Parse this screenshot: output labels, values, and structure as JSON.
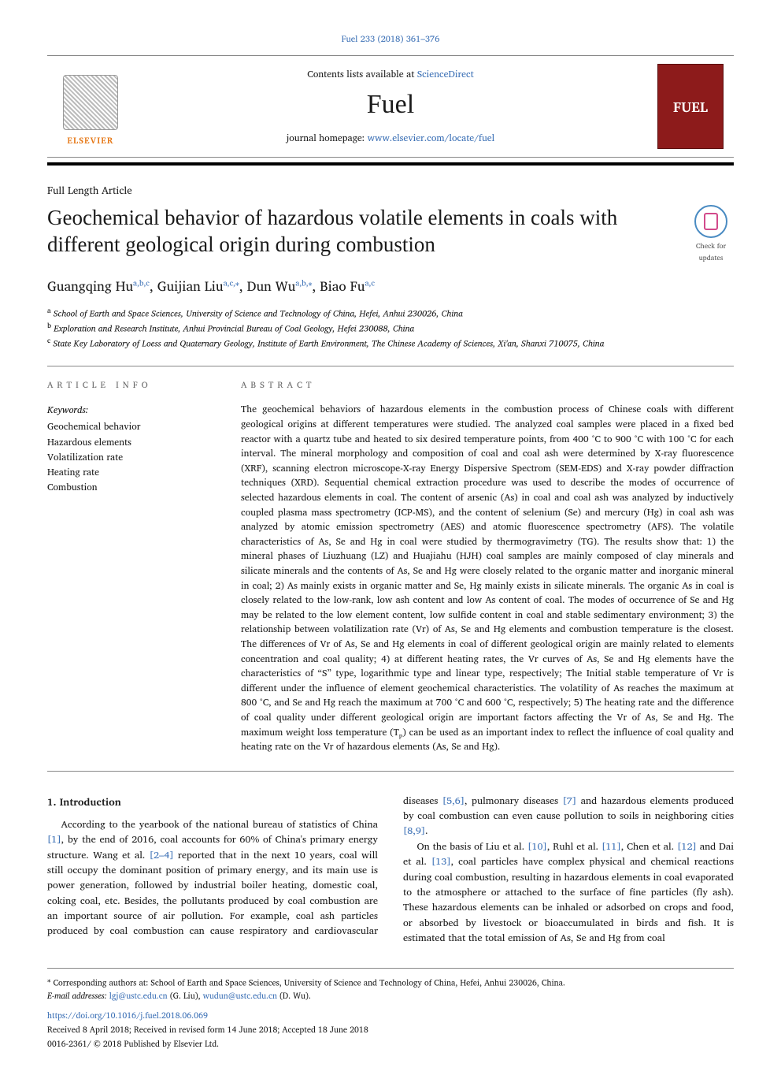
{
  "header": {
    "citation": "Fuel 233 (2018) 361–376",
    "contents_line_prefix": "Contents lists available at ",
    "contents_link": "ScienceDirect",
    "journal_name": "Fuel",
    "homepage_prefix": "journal homepage: ",
    "homepage_link": "www.elsevier.com/locate/fuel",
    "elsevier_label": "ELSEVIER",
    "cover_label": "FUEL"
  },
  "article": {
    "type": "Full Length Article",
    "title": "Geochemical behavior of hazardous volatile elements in coals with different geological origin during combustion",
    "updates_label": "Check for updates"
  },
  "authors": {
    "list_html": "Guangqing Hu<sup>a,b,c</sup>, Guijian Liu<sup>a,c,</sup><sup>⁎</sup>, Dun Wu<sup>a,b,</sup><sup>⁎</sup>, Biao Fu<sup>a,c</sup>",
    "a1_text": "Guangqing Hu",
    "a1_sup": "a,b,c",
    "a2_text": "Guijian Liu",
    "a2_sup": "a,c,⁎",
    "a3_text": "Dun Wu",
    "a3_sup": "a,b,⁎",
    "a4_text": "Biao Fu",
    "a4_sup": "a,c"
  },
  "affiliations": {
    "a": "School of Earth and Space Sciences, University of Science and Technology of China, Hefei, Anhui 230026, China",
    "b": "Exploration and Research Institute, Anhui Provincial Bureau of Coal Geology, Hefei 230088, China",
    "c": "State Key Laboratory of Loess and Quaternary Geology, Institute of Earth Environment, The Chinese Academy of Sciences, Xi'an, Shanxi 710075, China"
  },
  "info": {
    "label": "ARTICLE INFO",
    "keywords_head": "Keywords:",
    "keywords": [
      "Geochemical behavior",
      "Hazardous elements",
      "Volatilization rate",
      "Heating rate",
      "Combustion"
    ]
  },
  "abstract": {
    "label": "ABSTRACT",
    "text": "The geochemical behaviors of hazardous elements in the combustion process of Chinese coals with different geological origins at different temperatures were studied. The analyzed coal samples were placed in a fixed bed reactor with a quartz tube and heated to six desired temperature points, from 400 °C to 900 °C with 100 °C for each interval. The mineral morphology and composition of coal and coal ash were determined by X-ray fluorescence (XRF), scanning electron microscope-X-ray Energy Dispersive Spectrom (SEM-EDS) and X-ray powder diffraction techniques (XRD). Sequential chemical extraction procedure was used to describe the modes of occurrence of selected hazardous elements in coal. The content of arsenic (As) in coal and coal ash was analyzed by inductively coupled plasma mass spectrometry (ICP-MS), and the content of selenium (Se) and mercury (Hg) in coal ash was analyzed by atomic emission spectrometry (AES) and atomic fluorescence spectrometry (AFS). The volatile characteristics of As, Se and Hg in coal were studied by thermogravimetry (TG). The results show that: 1) the mineral phases of Liuzhuang (LZ) and Huajiahu (HJH) coal samples are mainly composed of clay minerals and silicate minerals and the contents of As, Se and Hg were closely related to the organic matter and inorganic mineral in coal; 2) As mainly exists in organic matter and Se, Hg mainly exists in silicate minerals. The organic As in coal is closely related to the low-rank, low ash content and low As content of coal. The modes of occurrence of Se and Hg may be related to the low element content, low sulfide content in coal and stable sedimentary environment; 3) the relationship between volatilization rate (Vr) of As, Se and Hg elements and combustion temperature is the closest. The differences of Vr of As, Se and Hg elements in coal of different geological origin are mainly related to elements concentration and coal quality; 4) at different heating rates, the Vr curves of As, Se and Hg elements have the characteristics of “S” type, logarithmic type and linear type, respectively; The Initial stable temperature of Vr is different under the influence of element geochemical characteristics. The volatility of As reaches the maximum at 800 °C, and Se and Hg reach the maximum at 700 °C and 600 °C, respectively; 5) The heating rate and the difference of coal quality under different geological origin are important factors affecting the Vr of As, Se and Hg. The maximum weight loss temperature (Tₚ) can be used as an important index to reflect the influence of coal quality and heating rate on the Vr of hazardous elements (As, Se and Hg)."
  },
  "body": {
    "section_heading": "1. Introduction",
    "p1_a": "According to the yearbook of the national bureau of statistics of China ",
    "p1_ref1": "[1]",
    "p1_b": ", by the end of 2016, coal accounts for 60% of China's primary energy structure. Wang et al. ",
    "p1_ref2": "[2–4]",
    "p1_c": " reported that in the next 10 years, coal will still occupy the dominant position of primary energy, and its main use is power generation, followed by industrial boiler heating, domestic coal, coking coal, etc. Besides, the pollutants produced by coal combustion are an important source of air pollution. For example, coal ash particles produced by coal combustion can cause respiratory and cardiovascular diseases ",
    "p1_ref3": "[5,6]",
    "p1_d": ", pulmonary diseases ",
    "p1_ref4": "[7]",
    "p1_e": " and hazardous elements produced by coal combustion can even cause pollution to soils in neighboring cities ",
    "p1_ref5": "[8,9]",
    "p1_f": ".",
    "p2_a": "On the basis of Liu et al. ",
    "p2_ref1": "[10]",
    "p2_b": ", Ruhl et al. ",
    "p2_ref2": "[11]",
    "p2_c": ", Chen et al. ",
    "p2_ref3": "[12]",
    "p2_d": " and Dai et al. ",
    "p2_ref4": "[13]",
    "p2_e": ", coal particles have complex physical and chemical reactions during coal combustion, resulting in hazardous elements in coal evaporated to the atmosphere or attached to the surface of fine particles (fly ash). These hazardous elements can be inhaled or adsorbed on crops and food, or absorbed by livestock or bioaccumulated in birds and fish. It is estimated that the total emission of As, Se and Hg from coal"
  },
  "footer": {
    "corr_marker": "⁎",
    "corr_text": " Corresponding authors at: School of Earth and Space Sciences, University of Science and Technology of China, Hefei, Anhui 230026, China.",
    "email_label": "E-mail addresses: ",
    "email1": "lgj@ustc.edu.cn",
    "email1_person": " (G. Liu), ",
    "email2": "wudun@ustc.edu.cn",
    "email2_person": " (D. Wu).",
    "doi": "https://doi.org/10.1016/j.fuel.2018.06.069",
    "received": "Received 8 April 2018; Received in revised form 14 June 2018; Accepted 18 June 2018",
    "copyright": "0016-2361/ © 2018 Published by Elsevier Ltd."
  },
  "colors": {
    "link": "#3a6fb5",
    "elsevier_orange": "#e67817",
    "cover_red": "#8d1b1b",
    "rule_gray": "#888888"
  }
}
